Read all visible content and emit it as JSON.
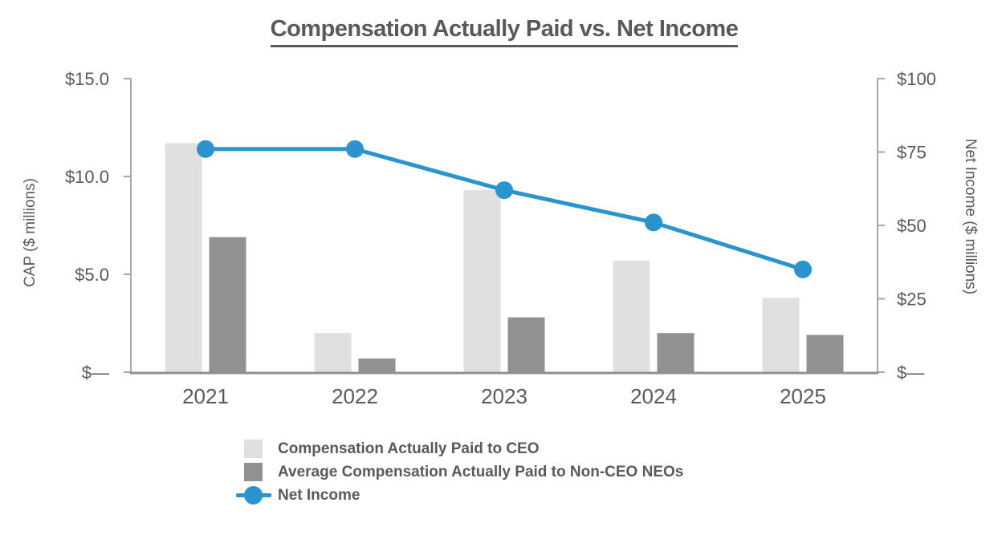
{
  "colors": {
    "text": "#595959",
    "axis_line": "#A6A6A6",
    "baseline": "#8F8F8F",
    "ceo_bar": "#E0E0E0",
    "neo_bar": "#919191",
    "net_income": "#2B94CF"
  },
  "chart_data": {
    "type": "combo-bar-line",
    "title": "Compensation Actually Paid vs. Net Income",
    "categories": [
      "2021",
      "2022",
      "2023",
      "2024",
      "2025"
    ],
    "series": [
      {
        "id": "ceo-cap",
        "name": "Compensation Actually Paid to CEO",
        "type": "bar",
        "axis": "left",
        "color": "#E0E0E0",
        "values": [
          11.7,
          2.0,
          9.3,
          5.7,
          3.8
        ]
      },
      {
        "id": "neo-cap",
        "name": "Average Compensation Actually Paid to Non-CEO NEOs",
        "type": "bar",
        "axis": "left",
        "color": "#919191",
        "values": [
          6.9,
          0.7,
          2.8,
          2.0,
          1.9
        ]
      },
      {
        "id": "net-income",
        "name": "Net Income",
        "type": "line",
        "axis": "right",
        "color": "#2B94CF",
        "values": [
          76,
          76,
          62,
          51,
          35
        ]
      }
    ],
    "left_axis": {
      "label": "CAP ($ millions)",
      "range": [
        0,
        15
      ],
      "tick_values": [
        0,
        5,
        10,
        15
      ],
      "tick_labels": [
        "$—",
        "$5.0",
        "$10.0",
        "$15.0"
      ]
    },
    "right_axis": {
      "label": "Net Income ($ millions)",
      "range": [
        0,
        100
      ],
      "tick_values": [
        0,
        25,
        50,
        75,
        100
      ],
      "tick_labels": [
        "$—",
        "$25",
        "$50",
        "$75",
        "$100"
      ]
    },
    "legend": [
      {
        "label": "Compensation Actually Paid to CEO",
        "marker": "square",
        "color": "#E0E0E0"
      },
      {
        "label": "Average Compensation Actually Paid to Non-CEO NEOs",
        "marker": "square",
        "color": "#919191"
      },
      {
        "label": "Net Income",
        "marker": "line-dot",
        "color": "#2B94CF"
      }
    ],
    "grid": false,
    "legend_position": "bottom"
  }
}
